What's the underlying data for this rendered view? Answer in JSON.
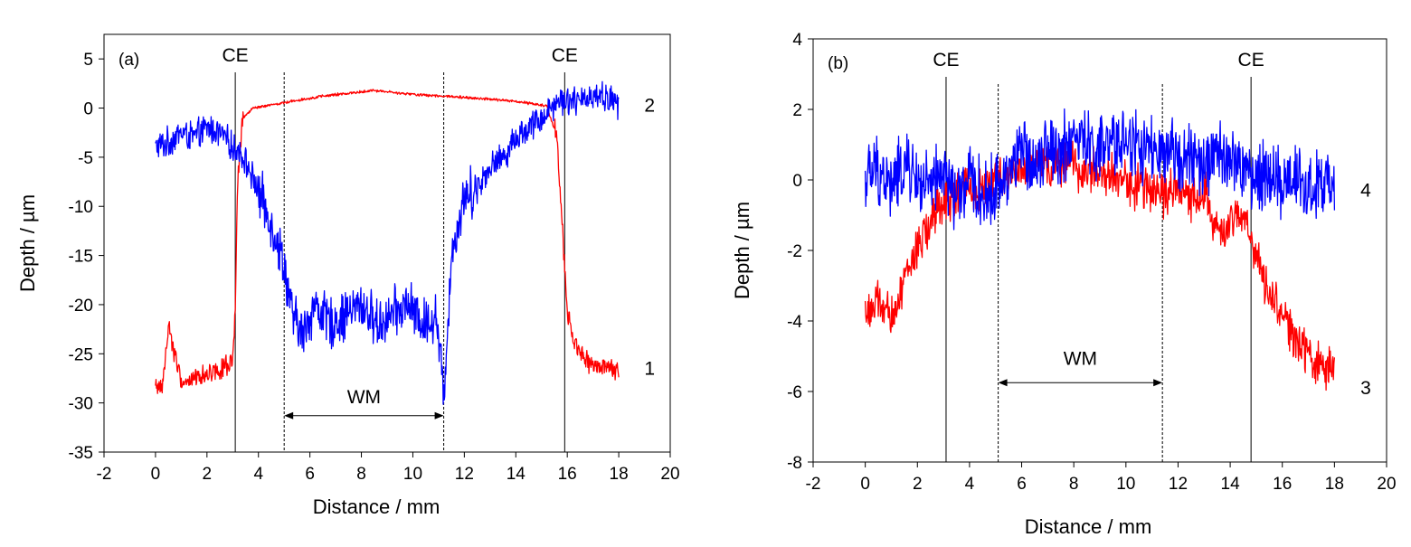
{
  "chart_data": [
    {
      "type": "line",
      "panel_label": "(a)",
      "xlabel": "Distance / mm",
      "ylabel": "Depth / µm",
      "xlim": [
        -2,
        20
      ],
      "ylim": [
        -35,
        7.5
      ],
      "x_ticks": [
        -2,
        0,
        2,
        4,
        6,
        8,
        10,
        12,
        14,
        16,
        18,
        20
      ],
      "y_ticks": [
        5,
        0,
        -5,
        -10,
        -15,
        -20,
        -25,
        -30,
        -35
      ],
      "grid": false,
      "annotations": {
        "ce_lines": [
          {
            "x": 3.1,
            "label": "CE"
          },
          {
            "x": 15.9,
            "label": "CE"
          }
        ],
        "wm_lines": [
          5.0,
          11.2
        ],
        "wm": {
          "label": "WM",
          "from": 5.0,
          "to": 11.2,
          "y": -31.3
        }
      },
      "series": [
        {
          "name": "2",
          "color": "#0000ff",
          "label_at": [
            19.2,
            0.3
          ],
          "x": [
            0,
            0.5,
            1.0,
            1.5,
            2.0,
            2.5,
            3.0,
            3.3,
            3.6,
            4.0,
            4.4,
            4.8,
            5.0,
            5.3,
            5.7,
            6.2,
            6.8,
            7.4,
            8.0,
            8.6,
            9.2,
            9.8,
            10.4,
            10.9,
            11.2,
            11.5,
            12.0,
            12.5,
            13.0,
            13.5,
            14.0,
            14.5,
            15.0,
            15.5,
            16.0,
            16.5,
            17.0,
            17.5,
            18.0
          ],
          "y": [
            -4,
            -3.5,
            -2.5,
            -3,
            -2,
            -2.5,
            -4,
            -4.5,
            -6,
            -8.5,
            -11,
            -14,
            -16,
            -21,
            -23,
            -20,
            -22,
            -21,
            -20,
            -22,
            -21,
            -20,
            -22,
            -21,
            -29,
            -15,
            -9,
            -8,
            -6,
            -5,
            -3,
            -2,
            -1,
            0.5,
            1,
            0.5,
            1.5,
            1,
            0.5
          ]
        },
        {
          "name": "1",
          "color": "#ff0000",
          "label_at": [
            19.2,
            -26.5
          ],
          "x": [
            0,
            0.3,
            0.5,
            1.0,
            1.5,
            2.0,
            2.5,
            3.0,
            3.1,
            3.2,
            3.4,
            3.8,
            4.5,
            5.5,
            6.5,
            7.5,
            8.5,
            9.5,
            10.5,
            11.5,
            12.5,
            13.5,
            14.5,
            15.2,
            15.6,
            15.8,
            16.0,
            16.3,
            16.8,
            17.5,
            18.0
          ],
          "y": [
            -28.5,
            -28,
            -22,
            -28,
            -27.5,
            -27,
            -26.5,
            -26,
            -21,
            -7,
            -1,
            0,
            0.3,
            0.8,
            1.2,
            1.5,
            1.8,
            1.5,
            1.3,
            1.2,
            1,
            0.8,
            0.5,
            0.2,
            -3,
            -12,
            -21,
            -24,
            -26,
            -26.5,
            -27
          ]
        }
      ]
    },
    {
      "type": "line",
      "panel_label": "(b)",
      "xlabel": "Distance / mm",
      "ylabel": "Depth / µm",
      "xlim": [
        -2,
        20
      ],
      "ylim": [
        -8,
        4
      ],
      "x_ticks": [
        -2,
        0,
        2,
        4,
        6,
        8,
        10,
        12,
        14,
        16,
        18,
        20
      ],
      "y_ticks": [
        4,
        2,
        0,
        -2,
        -4,
        -6,
        -8
      ],
      "grid": false,
      "annotations": {
        "ce_lines": [
          {
            "x": 3.1,
            "label": "CE"
          },
          {
            "x": 14.8,
            "label": "CE"
          }
        ],
        "wm_lines": [
          5.1,
          11.4
        ],
        "wm": {
          "label": "WM",
          "from": 5.1,
          "to": 11.4,
          "y": -5.75
        }
      },
      "series": [
        {
          "name": "4",
          "color": "#0000ff",
          "label_at": [
            19.2,
            -0.3
          ],
          "x": [
            0,
            0.5,
            1.0,
            1.5,
            2.0,
            2.5,
            3.0,
            3.5,
            4.0,
            4.5,
            5.0,
            5.5,
            6.0,
            6.5,
            7.0,
            7.5,
            8.0,
            8.5,
            9.0,
            9.5,
            10.0,
            10.5,
            11.0,
            11.5,
            12.0,
            12.5,
            13.0,
            13.5,
            14.0,
            14.5,
            15.0,
            15.5,
            16.0,
            16.5,
            17.0,
            17.5,
            18.0
          ],
          "y": [
            0,
            0.3,
            -0.2,
            0.4,
            0,
            -0.3,
            0.2,
            -0.5,
            0,
            -0.5,
            -0.3,
            0.3,
            0.8,
            0.5,
            1,
            0.8,
            1.2,
            1,
            0.8,
            1,
            1.2,
            0.9,
            0.8,
            0.5,
            0.8,
            0.6,
            0.3,
            0.8,
            0.5,
            0.3,
            0,
            0.3,
            -0.2,
            0.2,
            -0.3,
            0,
            -0.5
          ]
        },
        {
          "name": "3",
          "color": "#ff0000",
          "label_at": [
            19.2,
            -5.9
          ],
          "x": [
            0,
            0.5,
            1.0,
            1.5,
            2.0,
            2.5,
            3.0,
            3.5,
            4.0,
            4.5,
            5.0,
            5.5,
            6.0,
            6.5,
            7.0,
            7.5,
            8.0,
            8.5,
            9.0,
            9.5,
            10.0,
            10.5,
            11.0,
            11.5,
            12.0,
            12.5,
            13.0,
            13.5,
            13.8,
            14.2,
            14.6,
            15.0,
            15.5,
            16.0,
            16.5,
            17.0,
            17.5,
            18.0
          ],
          "y": [
            -3.8,
            -3.5,
            -4,
            -2.8,
            -2,
            -1.2,
            -0.6,
            -0.4,
            -0.2,
            -0.3,
            0,
            0.2,
            0.3,
            0.4,
            0.3,
            0.5,
            0.4,
            0.3,
            0.3,
            0.1,
            -0.1,
            -0.2,
            -0.2,
            -0.4,
            -0.3,
            -0.5,
            -0.3,
            -1.5,
            -1.6,
            -1.0,
            -1.2,
            -2.2,
            -3.2,
            -3.8,
            -4.5,
            -5,
            -5.3,
            -5.5
          ]
        }
      ]
    }
  ]
}
